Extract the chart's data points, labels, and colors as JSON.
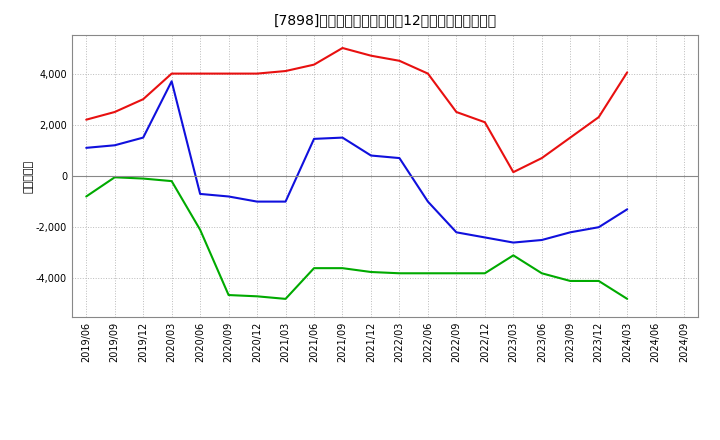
{
  "title": "[7898]　キャッシュフローの12か月移動合計の推移",
  "ylabel": "（百万円）",
  "x_labels": [
    "2019/06",
    "2019/09",
    "2019/12",
    "2020/03",
    "2020/06",
    "2020/09",
    "2020/12",
    "2021/03",
    "2021/06",
    "2021/09",
    "2021/12",
    "2022/03",
    "2022/06",
    "2022/09",
    "2022/12",
    "2023/03",
    "2023/06",
    "2023/09",
    "2023/12",
    "2024/03",
    "2024/06",
    "2024/09"
  ],
  "operating_cf": [
    2200,
    2500,
    3000,
    4000,
    4000,
    4000,
    4000,
    4100,
    4350,
    5000,
    4700,
    4500,
    4000,
    2500,
    2100,
    150,
    700,
    1500,
    2300,
    4050,
    null,
    null
  ],
  "investing_cf": [
    -800,
    -50,
    -100,
    -200,
    -2100,
    -4650,
    -4700,
    -4800,
    -3600,
    -3600,
    -3750,
    -3800,
    -3800,
    -3800,
    -3800,
    -3100,
    -3800,
    -4100,
    -4100,
    -4800,
    null,
    null
  ],
  "free_cf": [
    1100,
    1200,
    1500,
    3700,
    -700,
    -800,
    -1000,
    -1000,
    1450,
    1500,
    800,
    700,
    -1000,
    -2200,
    -2400,
    -2600,
    -2500,
    -2200,
    -2000,
    -1300,
    null,
    null
  ],
  "operating_color": "#e81010",
  "investing_color": "#00aa00",
  "free_cf_color": "#1010dd",
  "ylim": [
    -5500,
    5500
  ],
  "yticks": [
    -4000,
    -2000,
    0,
    2000,
    4000
  ],
  "background_color": "#ffffff",
  "grid_color": "#cccccc"
}
